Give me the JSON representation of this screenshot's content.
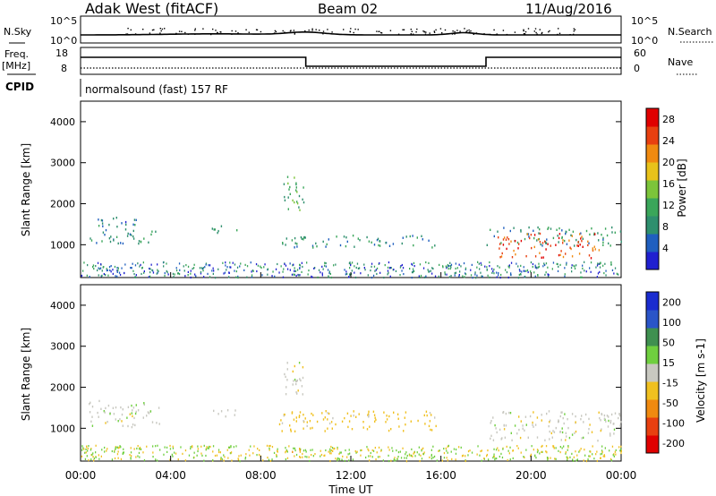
{
  "header": {
    "station": "Adak West (fitACF)",
    "beam": "Beam 02",
    "date": "11/Aug/2016"
  },
  "top_panels": {
    "nsky_label": "N.Sky",
    "nsky_ticks": [
      "10^5",
      "10^0"
    ],
    "nsearch_label": "N.Search",
    "nsearch_ticks": [
      "10^5",
      "10^0"
    ],
    "freq_label": "Freq.",
    "freq_unit": "[MHz]",
    "freq_ticks": [
      "18",
      "8"
    ],
    "nave_label": "Nave",
    "nave_ticks": [
      "60",
      "0"
    ],
    "cpid_label": "CPID",
    "cpid_text": "normalsound (fast) 157 RF",
    "freq_steps": [
      {
        "start_h": 0,
        "end_h": 10,
        "level": "high"
      },
      {
        "start_h": 10,
        "end_h": 18,
        "level": "low"
      },
      {
        "start_h": 18,
        "end_h": 24,
        "level": "high"
      }
    ]
  },
  "chart_data": [
    {
      "type": "heatmap",
      "title": "Power",
      "ylabel": "Slant Range [km]",
      "xlabel": "Time UT",
      "ylim": [
        200,
        4500
      ],
      "xlim": [
        0,
        24
      ],
      "yticks": [
        "1000",
        "2000",
        "3000",
        "4000"
      ],
      "xticks": [
        "00:00",
        "04:00",
        "08:00",
        "12:00",
        "16:00",
        "20:00",
        "00:00"
      ],
      "colorbar": {
        "label": "Power [dB]",
        "ticks": [
          "4",
          "8",
          "12",
          "16",
          "20",
          "24",
          "28"
        ],
        "range": [
          0,
          30
        ]
      },
      "regions": [
        {
          "t": [
            0.3,
            2.5
          ],
          "r": [
            1050,
            1700
          ],
          "value": 7
        },
        {
          "t": [
            2.5,
            3.5
          ],
          "r": [
            1050,
            1350
          ],
          "value": 10
        },
        {
          "t": [
            5.8,
            7.0
          ],
          "r": [
            1300,
            1500
          ],
          "value": 10
        },
        {
          "t": [
            8.8,
            15.8
          ],
          "r": [
            950,
            1250
          ],
          "value": 9
        },
        {
          "t": [
            9.0,
            10.0
          ],
          "r": [
            1800,
            2700
          ],
          "value": 12
        },
        {
          "t": [
            18.0,
            24.0
          ],
          "r": [
            1000,
            1450
          ],
          "value": 9
        },
        {
          "t": [
            18.5,
            23.0
          ],
          "r": [
            700,
            1300
          ],
          "value": 25
        }
      ]
    },
    {
      "type": "heatmap",
      "title": "Velocity",
      "ylabel": "Slant Range [km]",
      "xlabel": "Time UT",
      "ylim": [
        200,
        4500
      ],
      "xlim": [
        0,
        24
      ],
      "yticks": [
        "1000",
        "2000",
        "3000",
        "4000"
      ],
      "xticks": [
        "00:00",
        "04:00",
        "08:00",
        "12:00",
        "16:00",
        "20:00",
        "00:00"
      ],
      "colorbar": {
        "label": "Velocity [m s-1]",
        "ticks": [
          "200",
          "100",
          "50",
          "15",
          "-15",
          "-50",
          "-100",
          "-200"
        ]
      },
      "regions": [
        {
          "t": [
            0.3,
            3.5
          ],
          "r": [
            1050,
            1700
          ],
          "value": 0
        },
        {
          "t": [
            5.8,
            7.0
          ],
          "r": [
            1300,
            1500
          ],
          "value": 0
        },
        {
          "t": [
            8.8,
            15.8
          ],
          "r": [
            950,
            1450
          ],
          "value": -30
        },
        {
          "t": [
            9.0,
            10.0
          ],
          "r": [
            1800,
            2700
          ],
          "value": 0
        },
        {
          "t": [
            18.0,
            24.0
          ],
          "r": [
            700,
            1450
          ],
          "value": 0
        },
        {
          "t": [
            9.2,
            9.8
          ],
          "r": [
            400,
            600
          ],
          "value": -60
        }
      ]
    }
  ],
  "colors": {
    "power": [
      "#2020d0",
      "#1f5fbf",
      "#2e8f6e",
      "#3aa65a",
      "#7cc43a",
      "#e8c21a",
      "#f08a10",
      "#e84010",
      "#e00000"
    ],
    "velocity": [
      "#1a2ccf",
      "#2a55c8",
      "#3f9050",
      "#6fcf3f",
      "#c8c8c0",
      "#f0c020",
      "#f08a10",
      "#e84010",
      "#e00000"
    ]
  }
}
